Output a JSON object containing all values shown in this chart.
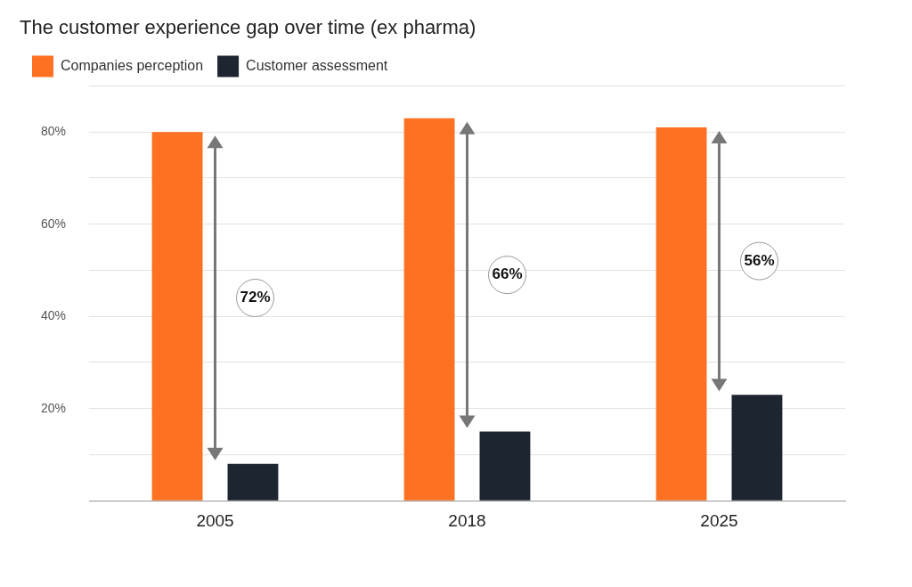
{
  "chart_data": {
    "type": "bar",
    "title": "The customer experience gap over time (ex pharma)",
    "categories": [
      "2005",
      "2018",
      "2025"
    ],
    "series": [
      {
        "name": "Companies perception",
        "color": "#fe7122",
        "values": [
          80,
          83,
          81
        ]
      },
      {
        "name": "Customer assessment",
        "color": "#1d2530",
        "values": [
          8,
          15,
          23
        ]
      }
    ],
    "ylim": [
      0,
      90
    ],
    "yticks": [
      {
        "value": 0,
        "label": null
      },
      {
        "value": 10,
        "label": null
      },
      {
        "value": 20,
        "label": "20%"
      },
      {
        "value": 30,
        "label": null
      },
      {
        "value": 40,
        "label": "40%"
      },
      {
        "value": 50,
        "label": null
      },
      {
        "value": 60,
        "label": "60%"
      },
      {
        "value": 70,
        "label": null
      },
      {
        "value": 80,
        "label": "80%"
      },
      {
        "value": 90,
        "label": null
      }
    ],
    "grid": "y",
    "legend": "top left",
    "annotations": [
      "72%",
      "66%",
      "56%"
    ]
  }
}
